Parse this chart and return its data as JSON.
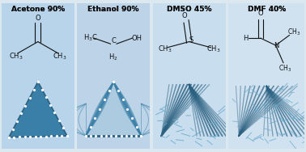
{
  "titles": [
    "Acetone 90%",
    "Ethanol 90%",
    "DMSO 45%",
    "DMF 40%"
  ],
  "bg_colors": [
    "#b8d4ea",
    "#bdd4e8",
    "#c8dded",
    "#d0e2f0"
  ],
  "overall_bg": "#dce8f0",
  "dna_dark": "#2a6080",
  "dna_mid": "#3a7fa8",
  "dna_light": "#6aaace",
  "dna_vlight": "#9ec4da",
  "white": "#ffffff",
  "title_fontsize": 6.5,
  "mol_fontsize": 6.0
}
